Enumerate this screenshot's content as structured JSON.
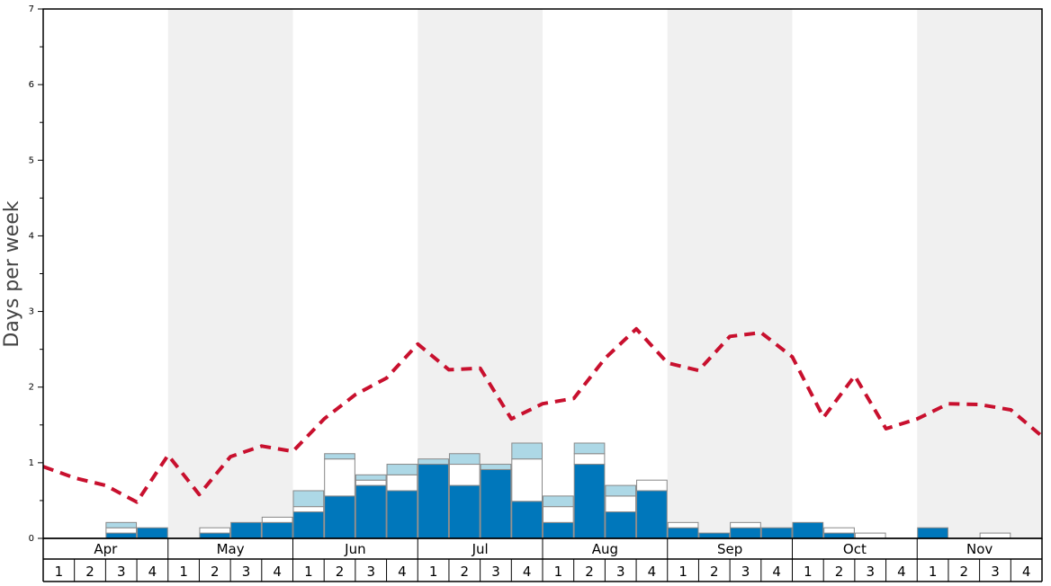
{
  "chart_data": {
    "type": "bar",
    "ylabel": "Days per week",
    "xlabel": "",
    "title": "",
    "ylim": [
      0,
      7
    ],
    "yticks": [
      "0",
      "1",
      "2",
      "3",
      "4",
      "5",
      "6",
      "7"
    ],
    "months": [
      "Apr",
      "May",
      "Jun",
      "Jul",
      "Aug",
      "Sep",
      "Oct",
      "Nov"
    ],
    "week_labels": [
      "1",
      "2",
      "3",
      "4"
    ],
    "colors": {
      "dark": "#0077bb",
      "white": "#ffffff",
      "light": "#add8e6",
      "line": "#c8102e",
      "band": "#f0f0f0",
      "bar_stroke": "#888888"
    },
    "series": [
      {
        "key": "dark",
        "values": [
          0,
          0,
          0.07,
          0.14,
          0,
          0.07,
          0.21,
          0.21,
          0.35,
          0.56,
          0.7,
          0.63,
          0.98,
          0.7,
          0.91,
          0.49,
          0.21,
          0.98,
          0.35,
          0.63,
          0.14,
          0.07,
          0.14,
          0.14,
          0.21,
          0.07,
          0,
          0,
          0.14,
          0,
          0,
          0
        ]
      },
      {
        "key": "white",
        "values": [
          0,
          0,
          0.07,
          0,
          0,
          0.07,
          0,
          0.07,
          0.07,
          0.49,
          0.07,
          0.21,
          0,
          0.28,
          0,
          0.56,
          0.21,
          0.14,
          0.21,
          0.14,
          0.07,
          0,
          0.07,
          0,
          0,
          0.07,
          0.07,
          0,
          0,
          0,
          0.07,
          0
        ]
      },
      {
        "key": "light",
        "values": [
          0,
          0,
          0.07,
          0,
          0,
          0,
          0,
          0,
          0.21,
          0.07,
          0.07,
          0.14,
          0.07,
          0.14,
          0.07,
          0.21,
          0.14,
          0.14,
          0.14,
          0,
          0,
          0,
          0,
          0,
          0,
          0,
          0,
          0,
          0,
          0,
          0,
          0
        ]
      }
    ],
    "average_line": [
      0.95,
      0.8,
      0.7,
      0.48,
      1.1,
      0.58,
      1.08,
      1.22,
      1.15,
      1.58,
      1.9,
      2.12,
      2.57,
      2.23,
      2.25,
      1.58,
      1.78,
      1.85,
      2.38,
      2.77,
      2.32,
      2.22,
      2.67,
      2.72,
      2.4,
      1.6,
      2.15,
      1.45,
      1.58,
      1.78,
      1.77,
      1.7,
      1.35
    ]
  }
}
